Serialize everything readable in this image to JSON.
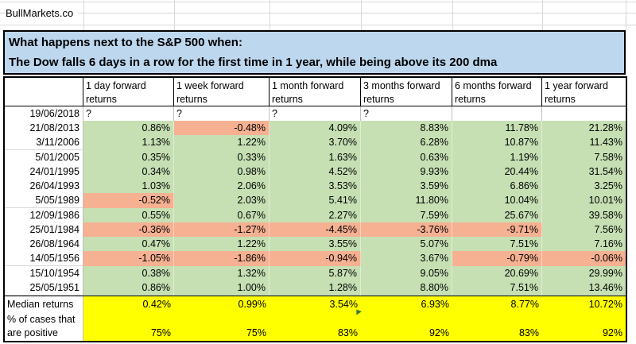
{
  "brand": "BullMarkets.co",
  "banner": {
    "line1": "What happens next to the S&P 500 when:",
    "line2": "The Dow falls 6 days in a row for the first time in 1 year, while being above its 200 dma"
  },
  "table": {
    "date_header": "",
    "column_headers": [
      "1 day forward returns",
      "1 week forward returns",
      "1 month forward returns",
      "3 months forward returns",
      "6 months forward returns",
      "1 year forward returns"
    ],
    "pending_row": {
      "date": "19/06/2018",
      "values": [
        "?",
        "?",
        "?",
        "?",
        "",
        ""
      ]
    },
    "rows": [
      {
        "date": "21/08/2013",
        "values": [
          "0.86%",
          "-0.48%",
          "4.09%",
          "8.83%",
          "11.78%",
          "21.28%"
        ]
      },
      {
        "date": "3/11/2006",
        "values": [
          "1.13%",
          "1.22%",
          "3.70%",
          "6.28%",
          "10.87%",
          "11.43%"
        ]
      },
      {
        "date": "5/01/2005",
        "values": [
          "0.35%",
          "0.33%",
          "1.63%",
          "0.63%",
          "1.19%",
          "7.58%"
        ]
      },
      {
        "date": "24/01/1995",
        "values": [
          "0.34%",
          "0.98%",
          "4.52%",
          "9.93%",
          "20.44%",
          "31.54%"
        ]
      },
      {
        "date": "26/04/1993",
        "values": [
          "1.03%",
          "2.06%",
          "3.53%",
          "3.59%",
          "6.86%",
          "3.25%"
        ]
      },
      {
        "date": "5/05/1989",
        "values": [
          "-0.52%",
          "2.03%",
          "5.41%",
          "11.80%",
          "10.04%",
          "10.01%"
        ]
      },
      {
        "date": "12/09/1986",
        "values": [
          "0.55%",
          "0.67%",
          "2.27%",
          "7.59%",
          "25.67%",
          "39.58%"
        ]
      },
      {
        "date": "25/01/1984",
        "values": [
          "-0.36%",
          "-1.27%",
          "-4.45%",
          "-3.76%",
          "-9.71%",
          "7.56%"
        ]
      },
      {
        "date": "26/08/1964",
        "values": [
          "0.47%",
          "1.22%",
          "3.55%",
          "5.07%",
          "7.51%",
          "7.16%"
        ]
      },
      {
        "date": "14/05/1956",
        "values": [
          "-1.05%",
          "-1.86%",
          "-0.94%",
          "3.67%",
          "-0.79%",
          "-0.06%"
        ]
      },
      {
        "date": "15/10/1954",
        "values": [
          "0.38%",
          "1.32%",
          "5.87%",
          "9.05%",
          "20.69%",
          "29.99%"
        ]
      },
      {
        "date": "25/05/1951",
        "values": [
          "0.86%",
          "1.00%",
          "1.28%",
          "8.80%",
          "7.51%",
          "13.46%"
        ]
      }
    ],
    "footer": {
      "median_label": "Median returns",
      "median_values": [
        "0.42%",
        "0.99%",
        "3.54%",
        "6.93%",
        "8.77%",
        "10.72%"
      ],
      "positive_label": "% of cases that are positive",
      "positive_values": [
        "75%",
        "75%",
        "83%",
        "92%",
        "83%",
        "92%"
      ]
    }
  },
  "colors": {
    "banner_bg": "#BDD7EE",
    "positive_bg": "#C6E0B4",
    "negative_bg": "#F6B092",
    "highlight_bg": "#FFFF00",
    "flag_green": "#3A7D33"
  }
}
